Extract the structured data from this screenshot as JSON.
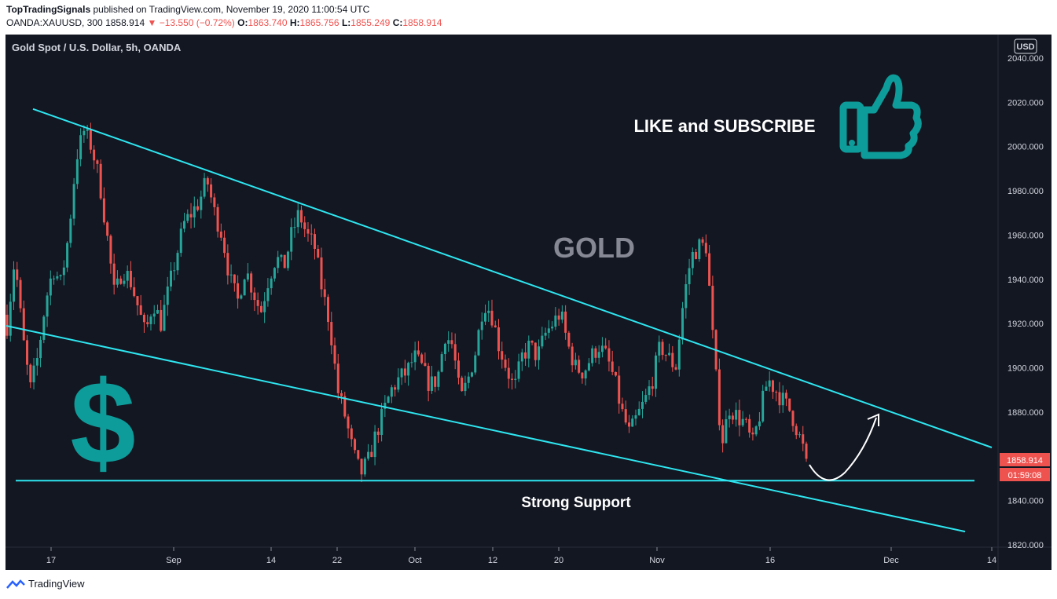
{
  "header": {
    "author": "TopTradingSignals",
    "published": "published on TradingView.com, November 19, 2020 11:00:54 UTC",
    "symbol": "OANDA:XAUUSD, 300",
    "last": "1858.914",
    "change": "−13.550 (−0.72%)",
    "o_label": "O:",
    "o": "1863.740",
    "h_label": "H:",
    "h": "1865.756",
    "l_label": "L:",
    "l": "1855.249",
    "c_label": "C:",
    "c": "1858.914"
  },
  "chart_data": {
    "type": "candlestick",
    "title": "Gold Spot / U.S. Dollar, 5h, OANDA",
    "currency": "USD",
    "ylim": [
      1820,
      2045
    ],
    "yticks": [
      "2040.000",
      "2020.000",
      "2000.000",
      "1980.000",
      "1960.000",
      "1940.000",
      "1920.000",
      "1900.000",
      "1880.000",
      "1860.000",
      "1840.000",
      "1820.000"
    ],
    "xticks": [
      "17",
      "Sep",
      "14",
      "22",
      "Oct",
      "12",
      "20",
      "Nov",
      "16",
      "Dec",
      "14"
    ],
    "last_price": "1858.914",
    "countdown": "01:59:08",
    "annotations": {
      "gold": "GOLD",
      "like": "LIKE and SUBSCRIBE",
      "support": "Strong Support",
      "dollar": "$"
    },
    "trendlines": {
      "upper": [
        [
          0,
          2017
        ],
        [
          1,
          1864
        ]
      ],
      "lower": [
        [
          0,
          1919
        ],
        [
          1,
          1826
        ]
      ],
      "support": 1849
    },
    "price_path": [
      1919,
      1950,
      1915,
      1890,
      1905,
      1930,
      1945,
      1938,
      1960,
      1995,
      2007,
      2000,
      1985,
      1960,
      1932,
      1945,
      1940,
      1928,
      1915,
      1930,
      1920,
      1935,
      1950,
      1965,
      1970,
      1975,
      1985,
      1970,
      1960,
      1940,
      1930,
      1945,
      1935,
      1925,
      1940,
      1950,
      1945,
      1960,
      1970,
      1960,
      1955,
      1935,
      1920,
      1890,
      1878,
      1862,
      1852,
      1858,
      1870,
      1880,
      1890,
      1895,
      1898,
      1905,
      1900,
      1892,
      1895,
      1915,
      1910,
      1885,
      1895,
      1908,
      1930,
      1925,
      1910,
      1900,
      1890,
      1905,
      1910,
      1905,
      1915,
      1920,
      1925,
      1910,
      1900,
      1898,
      1905,
      1910,
      1905,
      1895,
      1880,
      1870,
      1878,
      1885,
      1895,
      1910,
      1905,
      1900,
      1930,
      1950,
      1955,
      1955,
      1905,
      1866,
      1882,
      1878,
      1875,
      1865,
      1880,
      1895,
      1890,
      1885,
      1880,
      1870,
      1859
    ]
  },
  "footer": {
    "brand": "TradingView"
  }
}
